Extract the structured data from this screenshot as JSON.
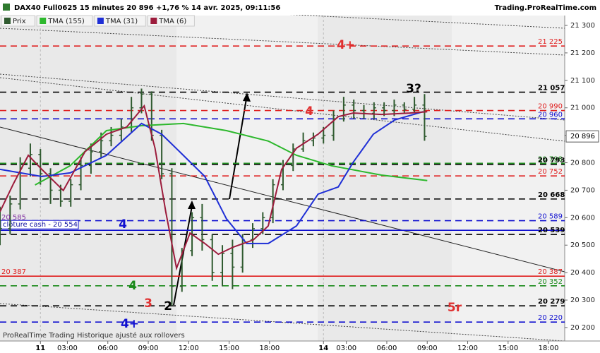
{
  "header": {
    "title": "DAX40 Full0625 15 minutes 20 896 +1,76 % 14 avr. 2025, 09:11:56",
    "site": "Trading.ProRealTime.com"
  },
  "footer": "ProRealTime Trading  Historique ajusté aux rollovers",
  "chart_data": {
    "type": "ohlc",
    "xlim": [
      0,
      41.9
    ],
    "ylim": [
      20151,
      21336
    ],
    "yticks": [
      {
        "value": 20200,
        "label": "20 200"
      },
      {
        "value": 20300,
        "label": "20 300"
      },
      {
        "value": 20400,
        "label": "20 400"
      },
      {
        "value": 20500,
        "label": "20 500"
      },
      {
        "value": 20600,
        "label": "20 600"
      },
      {
        "value": 20700,
        "label": "20 700"
      },
      {
        "value": 20800,
        "label": "20 800"
      },
      {
        "value": 20900,
        "label": "20 900"
      },
      {
        "value": 21000,
        "label": "21 000"
      },
      {
        "value": 21100,
        "label": "21 100"
      },
      {
        "value": 21200,
        "label": "21 200"
      },
      {
        "value": 21300,
        "label": "21 300"
      }
    ],
    "xticks": [
      {
        "value": 3,
        "label": "11"
      },
      {
        "value": 5,
        "label": "03:00"
      },
      {
        "value": 8,
        "label": "06:00"
      },
      {
        "value": 11,
        "label": "09:00"
      },
      {
        "value": 14,
        "label": "12:00"
      },
      {
        "value": 17,
        "label": "15:00"
      },
      {
        "value": 20,
        "label": "18:00"
      },
      {
        "value": 24,
        "label": "14"
      },
      {
        "value": 25.7,
        "label": "03:00"
      },
      {
        "value": 28.7,
        "label": "06:00"
      },
      {
        "value": 31.7,
        "label": "09:00"
      },
      {
        "value": 34.7,
        "label": "12:00"
      },
      {
        "value": 37.7,
        "label": "15:00"
      },
      {
        "value": 40.7,
        "label": "18:00"
      }
    ],
    "price": {
      "name": "Prix",
      "color": "#2f5a2f",
      "x": [
        0,
        0.75,
        1.5,
        2.25,
        3,
        3.75,
        4.5,
        5.25,
        6,
        6.75,
        7.5,
        8.25,
        9,
        9.75,
        10.5,
        11.25,
        12,
        12.75,
        13.5,
        14.25,
        15,
        15.75,
        16.5,
        17.25,
        18,
        18.75,
        19.5,
        20.25,
        21,
        21.75,
        22.5,
        23.25,
        24,
        24.75,
        25.5,
        26.25,
        27,
        27.75,
        28.5,
        29.25,
        30,
        30.75,
        31.5
      ],
      "open": [
        20600,
        20560,
        20650,
        20780,
        20830,
        20760,
        20700,
        20660,
        20720,
        20790,
        20840,
        20880,
        20900,
        20930,
        21000,
        21050,
        20900,
        20760,
        20350,
        20480,
        20600,
        20520,
        20400,
        20470,
        20420,
        20520,
        20560,
        20600,
        20720,
        20790,
        20850,
        20880,
        20890,
        20900,
        20960,
        21010,
        20990,
        20980,
        21000,
        20990,
        21010,
        20995,
        21010
      ],
      "high": [
        20640,
        20680,
        20820,
        20870,
        20850,
        20780,
        20720,
        20740,
        20820,
        20870,
        20910,
        20930,
        20960,
        21040,
        21070,
        21060,
        20920,
        20780,
        20490,
        20620,
        20650,
        20540,
        20500,
        20520,
        20540,
        20580,
        20620,
        20740,
        20810,
        20870,
        20910,
        20910,
        20930,
        20990,
        21040,
        21030,
        21010,
        21020,
        21020,
        21030,
        21020,
        21040,
        21050
      ],
      "low": [
        20500,
        20540,
        20630,
        20750,
        20720,
        20650,
        20640,
        20640,
        20700,
        20760,
        20820,
        20860,
        20880,
        20910,
        20980,
        20880,
        20740,
        20280,
        20330,
        20460,
        20480,
        20370,
        20350,
        20340,
        20400,
        20490,
        20540,
        20580,
        20700,
        20770,
        20840,
        20860,
        20870,
        20880,
        20950,
        20960,
        20960,
        20960,
        20970,
        20970,
        20980,
        20980,
        20880
      ],
      "close": [
        20560,
        20650,
        20780,
        20830,
        20760,
        20700,
        20660,
        20720,
        20790,
        20840,
        20880,
        20900,
        20930,
        21000,
        21050,
        20900,
        20760,
        20350,
        20480,
        20600,
        20520,
        20400,
        20470,
        20420,
        20520,
        20560,
        20600,
        20720,
        20790,
        20850,
        20880,
        20890,
        20900,
        20960,
        21010,
        20990,
        20980,
        21000,
        20990,
        21010,
        20995,
        21010,
        20896
      ]
    },
    "series": [
      {
        "name": "TMA (155)",
        "color": "#2db82d",
        "x": [
          2.6,
          5.2,
          7.9,
          10.5,
          13.6,
          16.8,
          19.9,
          22,
          24.6,
          28.3,
          31.7
        ],
        "values": [
          20719,
          20789,
          20917,
          20935,
          20943,
          20917,
          20879,
          20827,
          20789,
          20755,
          20735
        ]
      },
      {
        "name": "TMA (31)",
        "color": "#1f2fd6",
        "x": [
          0,
          3.1,
          5.2,
          7.9,
          10.5,
          12,
          13.6,
          15.2,
          16.8,
          18.3,
          19.9,
          22,
          23.6,
          25.1,
          26.2,
          27.7,
          29.3,
          31.4
        ],
        "values": [
          20776,
          20750,
          20763,
          20827,
          20943,
          20904,
          20827,
          20750,
          20596,
          20506,
          20506,
          20570,
          20686,
          20712,
          20801,
          20904,
          20956,
          20986
        ]
      },
      {
        "name": "TMA (6)",
        "color": "#9c1c3c",
        "x": [
          0,
          1,
          2.1,
          3.1,
          4.7,
          6.3,
          7.9,
          9.4,
          10.7,
          11.5,
          12.3,
          13.1,
          14.1,
          15.2,
          16.2,
          17.3,
          18.8,
          19.9,
          20.9,
          22,
          23.6,
          25.1,
          26.2,
          28.3,
          30.4,
          31.7
        ],
        "values": [
          20622,
          20724,
          20827,
          20776,
          20699,
          20840,
          20904,
          20930,
          21007,
          20853,
          20622,
          20416,
          20544,
          20506,
          20467,
          20493,
          20519,
          20570,
          20776,
          20853,
          20904,
          20968,
          20981,
          20976,
          20981,
          20986
        ]
      }
    ],
    "levels": [
      {
        "value": 21225,
        "label": "21 225",
        "color": "#e02020",
        "style": "dash"
      },
      {
        "value": 21057,
        "label": "21 057",
        "color": "#000000",
        "style": "dash"
      },
      {
        "value": 20990,
        "label": "20 990",
        "color": "#e02020",
        "style": "dash"
      },
      {
        "value": 20960,
        "label": "20 960",
        "color": "#1010d0",
        "style": "dash"
      },
      {
        "value": 20798,
        "label": "20 798",
        "color": "#1a8a1a",
        "style": "dash"
      },
      {
        "value": 20793,
        "label": "20 793",
        "color": "#000000",
        "style": "dash"
      },
      {
        "value": 20752,
        "label": "20 752",
        "color": "#e02020",
        "style": "dash"
      },
      {
        "value": 20668,
        "label": "20 668",
        "color": "#000000",
        "style": "dash"
      },
      {
        "value": 20589,
        "label": "20 589",
        "color": "#1010d0",
        "style": "dash"
      },
      {
        "value": 20554,
        "label": "clôture cash - 20 554",
        "color": "#1010d0",
        "style": "solid"
      },
      {
        "value": 20539,
        "label": "20 539",
        "color": "#000000",
        "style": "dash"
      },
      {
        "value": 20387,
        "label": "20 387",
        "color": "#e02020",
        "style": "solid"
      },
      {
        "value": 20352,
        "label": "20 352",
        "color": "#1a8a1a",
        "style": "dash"
      },
      {
        "value": 20279,
        "label": "20 279",
        "color": "#000000",
        "style": "dash"
      },
      {
        "value": 20220,
        "label": "20 220",
        "color": "#1010d0",
        "style": "dash"
      }
    ],
    "last_price": {
      "value": 20896,
      "label": "20 896"
    },
    "annotations": [
      {
        "text": "4+",
        "color": "#e03030"
      },
      {
        "text": "4",
        "color": "#e03030"
      },
      {
        "text": "3?",
        "color": "#000000"
      },
      {
        "text": "4",
        "color": "#1010d0"
      },
      {
        "text": "4",
        "color": "#1a8a1a"
      },
      {
        "text": "3",
        "color": "#e03030"
      },
      {
        "text": "2",
        "color": "#000000"
      },
      {
        "text": "4+",
        "color": "#1010d0"
      },
      {
        "text": "5r",
        "color": "#e03030"
      },
      {
        "text": "20 585",
        "color": "#8030a0"
      },
      {
        "text": "20 387",
        "color": "#e02020"
      }
    ]
  }
}
